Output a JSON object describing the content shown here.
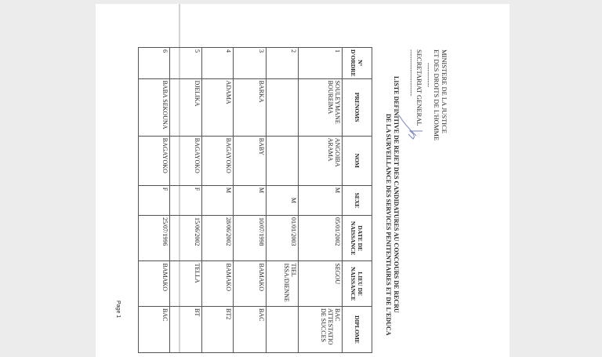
{
  "header": {
    "ministry_line1": "MINISTERE DE LA JUSTICE",
    "ministry_line2": "ET DES DROITS DE L'HOMME",
    "separator": "-----------",
    "secretariat": "SECRETARIAT GENERAL",
    "separator2": "---------------------"
  },
  "title": {
    "line1": "LISTE DEFINITIVE DE REJET DES CANDIDATURES  AU CONCOURS DE RECRU",
    "line2": "DE LA SURVEILLANCE DES SERVICES PENITENTIAIRES ET DE L'EDUCA"
  },
  "table": {
    "columns": [
      "N° D'ORDRE",
      "PRENOMS",
      "NOM",
      "SEXE",
      "DATE DE NAISSANCE",
      "LIEU DE NAISSANCE",
      "DIPLOME"
    ],
    "rows": [
      {
        "num": "1",
        "prenoms": "SOULEYMANE BOUREIMA",
        "nom": "ANGOIBA ARAMA",
        "sexe": "M",
        "date": "05/01/2002",
        "lieu": "SEGOU",
        "diplome": "BAC ATTESTATIO DE SUCCES"
      },
      {
        "num": "2",
        "prenoms": "",
        "nom": "",
        "sexe": "M",
        "date": "01/01/2003",
        "lieu": "TIEL ISSA/DIENNE",
        "diplome": ""
      },
      {
        "num": "3",
        "prenoms": "BARKA",
        "nom": "BABY",
        "sexe": "M",
        "date": "10/07/1998",
        "lieu": "BAMAKO",
        "diplome": "BAC"
      },
      {
        "num": "4",
        "prenoms": "ADAMA",
        "nom": "BAGAYOKO",
        "sexe": "M",
        "date": "28/06/2002",
        "lieu": "BAMAKO",
        "diplome": "BT2"
      },
      {
        "num": "5",
        "prenoms": "DJELIKA",
        "nom": "BAGAYOKO",
        "sexe": "F",
        "date": "15/06/2002",
        "lieu": "TELLA",
        "diplome": "BT"
      },
      {
        "num": "6",
        "prenoms": "BABA SEKOUNA",
        "nom": "BAGAYOKO",
        "sexe": "F",
        "date": "25/07/1996",
        "lieu": "BAMAKO",
        "diplome": "BAC"
      }
    ]
  },
  "footer": {
    "page": "Page 1"
  }
}
